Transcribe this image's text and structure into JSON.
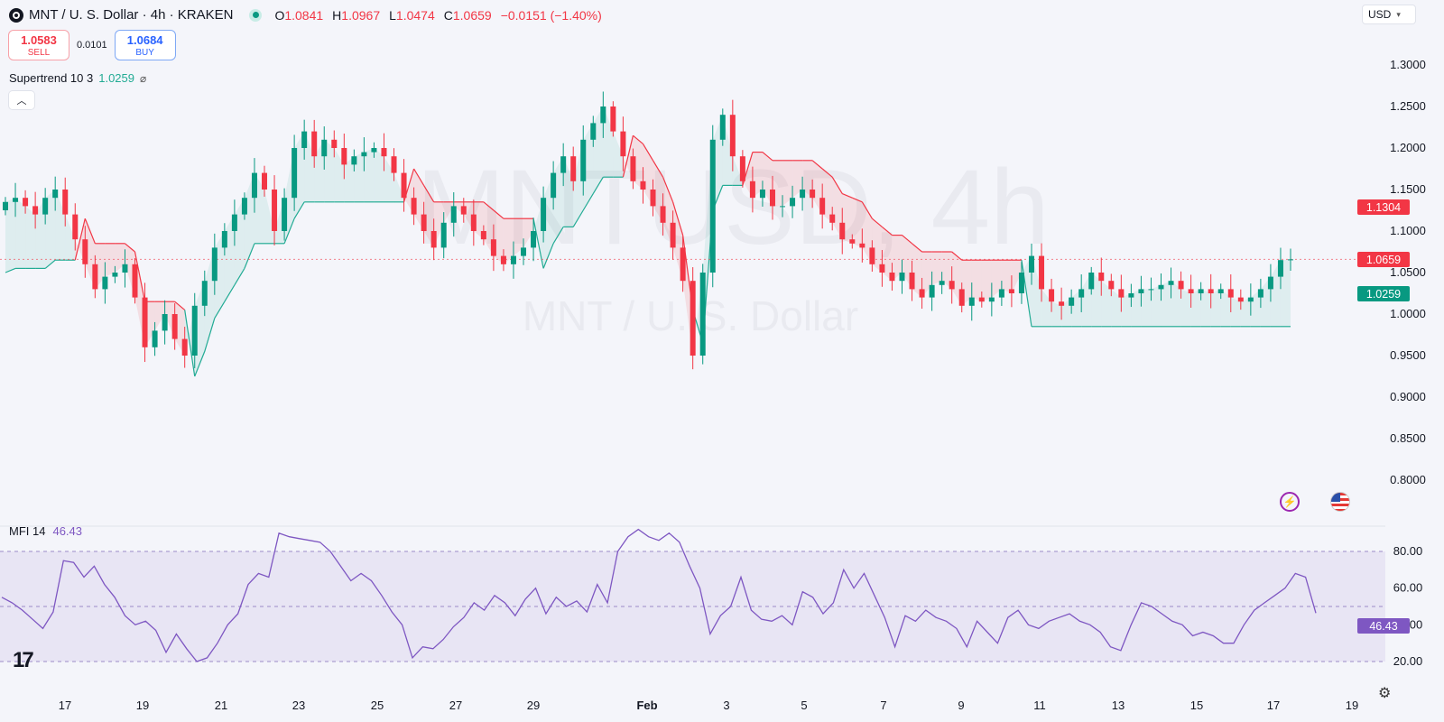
{
  "header": {
    "symbol_title": "MNT / U. S. Dollar · 4h · KRAKEN",
    "ohlc": [
      {
        "k": "O",
        "v": "1.0841"
      },
      {
        "k": "H",
        "v": "1.0967"
      },
      {
        "k": "L",
        "v": "1.0474"
      },
      {
        "k": "C",
        "v": "1.0659"
      }
    ],
    "change": "−0.0151 (−1.40%)"
  },
  "trade": {
    "sell_price": "1.0583",
    "sell_label": "SELL",
    "spread": "0.0101",
    "buy_price": "1.0684",
    "buy_label": "BUY"
  },
  "indicators": {
    "supertrend_label": "Supertrend 10 3",
    "supertrend_value": "1.0259",
    "mfi_label": "MFI 14",
    "mfi_value": "46.43"
  },
  "currency_select": "USD",
  "watermark": {
    "big": "MNTUSD, 4h",
    "small": "MNT / U. S. Dollar"
  },
  "price_tags": {
    "top": "1.1304",
    "last": "1.0659",
    "supertrend": "1.0259"
  },
  "mfi_tag": "46.43",
  "colors": {
    "up": "#089981",
    "down": "#f23645",
    "mfi": "#7e57c2",
    "supertrend_up": "#22ab94",
    "supertrend_down": "#f23645"
  },
  "chart_data": [
    {
      "type": "candlestick",
      "title": "MNT / U. S. Dollar · 4h · KRAKEN",
      "x_tick_labels": [
        "17",
        "19",
        "21",
        "23",
        "25",
        "27",
        "29",
        "Feb",
        "3",
        "5",
        "7",
        "9",
        "11",
        "13",
        "15",
        "17",
        "19"
      ],
      "y_ticks": [
        1.3,
        1.25,
        1.2,
        1.15,
        1.1,
        1.05,
        1.0,
        0.95,
        0.9,
        0.85,
        0.8
      ],
      "y_tick_labels": [
        "1.3000",
        "1.2500",
        "1.2000",
        "1.1500",
        "1.1000",
        "1.0500",
        "1.0000",
        "0.9500",
        "0.9000",
        "0.8500",
        "0.8000"
      ],
      "ylim": [
        0.78,
        1.36
      ],
      "series": [
        {
          "name": "MNTUSD 4h close",
          "values": [
            1.135,
            1.14,
            1.13,
            1.12,
            1.14,
            1.15,
            1.12,
            1.09,
            1.06,
            1.03,
            1.045,
            1.05,
            1.06,
            1.02,
            0.96,
            0.98,
            1.0,
            0.97,
            0.95,
            1.01,
            1.04,
            1.08,
            1.1,
            1.12,
            1.14,
            1.17,
            1.15,
            1.1,
            1.14,
            1.2,
            1.22,
            1.19,
            1.21,
            1.2,
            1.18,
            1.19,
            1.195,
            1.2,
            1.19,
            1.17,
            1.14,
            1.12,
            1.1,
            1.08,
            1.11,
            1.13,
            1.12,
            1.1,
            1.09,
            1.07,
            1.06,
            1.07,
            1.08,
            1.1,
            1.14,
            1.17,
            1.19,
            1.16,
            1.21,
            1.23,
            1.25,
            1.22,
            1.19,
            1.16,
            1.15,
            1.13,
            1.11,
            1.08,
            1.04,
            0.95,
            1.05,
            1.21,
            1.24,
            1.19,
            1.16,
            1.14,
            1.15,
            1.13,
            1.13,
            1.14,
            1.15,
            1.14,
            1.12,
            1.11,
            1.09,
            1.085,
            1.08,
            1.06,
            1.05,
            1.04,
            1.05,
            1.03,
            1.02,
            1.035,
            1.04,
            1.03,
            1.01,
            1.02,
            1.015,
            1.02,
            1.03,
            1.025,
            1.05,
            1.07,
            1.03,
            1.015,
            1.01,
            1.02,
            1.03,
            1.05,
            1.04,
            1.03,
            1.02,
            1.025,
            1.03,
            1.03,
            1.035,
            1.04,
            1.03,
            1.025,
            1.03,
            1.025,
            1.03,
            1.02,
            1.015,
            1.02,
            1.03,
            1.045,
            1.065,
            1.0659
          ]
        },
        {
          "name": "Supertrend 10 3",
          "values": [
            1.1304,
            1.0259
          ]
        }
      ]
    },
    {
      "type": "line",
      "title": "MFI 14",
      "y_tick_labels": [
        "80.00",
        "60.00",
        "40.00",
        "20.00"
      ],
      "ylim": [
        15,
        92
      ],
      "series": [
        {
          "name": "MFI 14",
          "values": [
            55,
            52,
            48,
            43,
            38,
            47,
            75,
            74,
            66,
            72,
            62,
            55,
            45,
            40,
            42,
            37,
            25,
            35,
            27,
            20,
            22,
            30,
            40,
            46,
            62,
            68,
            66,
            90,
            88,
            87,
            86,
            85,
            80,
            72,
            64,
            68,
            64,
            56,
            47,
            40,
            22,
            28,
            27,
            32,
            39,
            44,
            52,
            48,
            56,
            52,
            45,
            54,
            60,
            46,
            55,
            50,
            53,
            47,
            62,
            52,
            80,
            88,
            92,
            88,
            86,
            90,
            85,
            72,
            60,
            35,
            45,
            50,
            66,
            48,
            43,
            42,
            45,
            40,
            58,
            55,
            46,
            52,
            70,
            60,
            68,
            56,
            44,
            28,
            45,
            42,
            48,
            44,
            42,
            38,
            28,
            42,
            36,
            30,
            44,
            48,
            40,
            38,
            42,
            44,
            46,
            42,
            40,
            36,
            28,
            26,
            40,
            52,
            50,
            46,
            42,
            40,
            34,
            36,
            34,
            30,
            30,
            40,
            48,
            52,
            56,
            60,
            68,
            66,
            46.43
          ]
        }
      ]
    }
  ]
}
